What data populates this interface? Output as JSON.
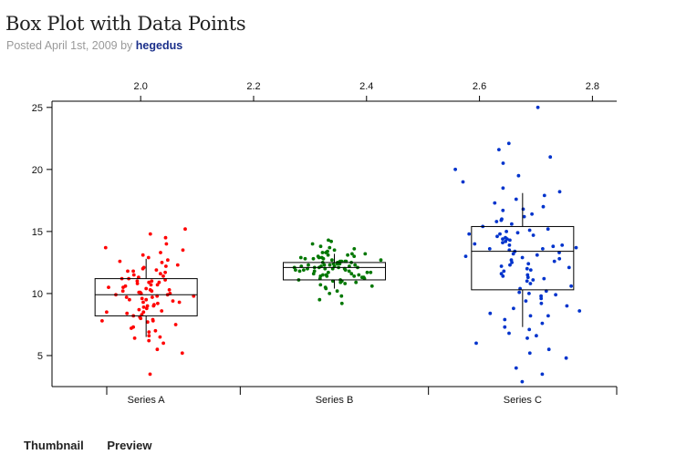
{
  "post": {
    "title": "Box Plot with Data Points",
    "posted_prefix": "Posted ",
    "date": "April 1st, 2009",
    "by": " by ",
    "author": "hegedus"
  },
  "footer": {
    "thumbnail": "Thumbnail",
    "preview": "Preview"
  },
  "chart_data": {
    "type": "box",
    "title": "",
    "xlabel": "",
    "ylabel": "",
    "ylim": [
      2.5,
      25.5
    ],
    "yticks": [
      5,
      10,
      15,
      20,
      25
    ],
    "top_axis": {
      "range": [
        1.843,
        2.843
      ],
      "ticks": [
        "2.0",
        "2.2",
        "2.4",
        "2.6",
        "2.8"
      ],
      "values": [
        2.0,
        2.2,
        2.4,
        2.6,
        2.8
      ]
    },
    "categories": [
      "Series A",
      "Series B",
      "Series C"
    ],
    "grid": false,
    "series": [
      {
        "name": "Series A",
        "color": "#ff0000",
        "q1": 8.2,
        "median": 9.9,
        "q3": 11.2,
        "whisker_low": 6.5,
        "whisker_high": 12.8,
        "jitter": 2.7,
        "points": [
          3.5,
          5.2,
          5.5,
          6.0,
          6.2,
          6.4,
          6.5,
          6.6,
          6.9,
          7.0,
          7.2,
          7.3,
          7.5,
          7.7,
          7.8,
          7.9,
          8.0,
          8.1,
          8.2,
          8.3,
          8.4,
          8.5,
          8.5,
          8.6,
          8.7,
          8.8,
          8.9,
          9.0,
          9.0,
          9.1,
          9.2,
          9.3,
          9.3,
          9.4,
          9.5,
          9.5,
          9.6,
          9.7,
          9.7,
          9.8,
          9.8,
          9.9,
          9.9,
          10.0,
          10.0,
          10.1,
          10.1,
          10.2,
          10.2,
          10.3,
          10.3,
          10.4,
          10.5,
          10.5,
          10.6,
          10.7,
          10.7,
          10.8,
          10.9,
          10.9,
          11.0,
          11.0,
          11.1,
          11.2,
          11.2,
          11.3,
          11.4,
          11.5,
          11.6,
          11.7,
          11.8,
          11.9,
          12.0,
          12.1,
          12.2,
          12.3,
          12.5,
          12.7,
          12.9,
          13.1,
          13.3,
          13.5,
          13.7,
          14.0,
          14.5,
          14.8,
          15.2,
          7.8,
          11.8,
          12.6
        ]
      },
      {
        "name": "Series B",
        "color": "#007700",
        "q1": 11.1,
        "median": 12.1,
        "q3": 12.5,
        "whisker_low": 10.4,
        "whisker_high": 13.2,
        "jitter": 2.2,
        "points": [
          9.2,
          9.5,
          9.8,
          10.0,
          10.2,
          10.4,
          10.5,
          10.6,
          10.7,
          10.8,
          10.9,
          11.0,
          11.0,
          11.1,
          11.1,
          11.2,
          11.2,
          11.3,
          11.3,
          11.4,
          11.4,
          11.5,
          11.5,
          11.6,
          11.6,
          11.7,
          11.7,
          11.8,
          11.8,
          11.8,
          11.9,
          11.9,
          11.9,
          12.0,
          12.0,
          12.0,
          12.1,
          12.1,
          12.1,
          12.1,
          12.2,
          12.2,
          12.2,
          12.2,
          12.3,
          12.3,
          12.3,
          12.4,
          12.4,
          12.4,
          12.5,
          12.5,
          12.5,
          12.6,
          12.6,
          12.6,
          12.7,
          12.7,
          12.8,
          12.8,
          12.9,
          12.9,
          13.0,
          13.0,
          13.1,
          13.1,
          13.2,
          13.3,
          13.4,
          13.5,
          13.6,
          13.7,
          13.8,
          14.0,
          14.2,
          14.3,
          11.0,
          12.0,
          12.9,
          11.7,
          12.3,
          12.6,
          13.2,
          11.4,
          10.9,
          12.8,
          13.3,
          11.5,
          12.1,
          12.4
        ]
      },
      {
        "name": "Series C",
        "color": "#0033cc",
        "q1": 10.3,
        "median": 13.4,
        "q3": 15.4,
        "whisker_low": 7.3,
        "whisker_high": 18.1,
        "jitter": 3.0,
        "points": [
          2.9,
          3.5,
          4.0,
          4.8,
          5.2,
          5.5,
          6.0,
          6.4,
          6.8,
          7.1,
          7.3,
          7.6,
          7.9,
          8.2,
          8.4,
          8.6,
          8.8,
          9.0,
          9.2,
          9.4,
          9.6,
          9.8,
          10.0,
          10.2,
          10.4,
          10.6,
          10.8,
          11.0,
          11.1,
          11.2,
          11.4,
          11.5,
          11.6,
          11.8,
          11.9,
          12.0,
          12.1,
          12.2,
          12.4,
          12.5,
          12.6,
          12.8,
          12.9,
          13.0,
          13.1,
          13.2,
          13.3,
          13.4,
          13.5,
          13.6,
          13.7,
          13.8,
          13.9,
          14.0,
          14.1,
          14.2,
          14.3,
          14.4,
          14.5,
          14.6,
          14.7,
          14.8,
          14.9,
          15.0,
          15.1,
          15.2,
          15.4,
          15.6,
          15.8,
          16.0,
          16.2,
          16.4,
          16.7,
          17.0,
          17.3,
          17.6,
          17.9,
          18.2,
          18.5,
          19.0,
          19.5,
          20.0,
          20.5,
          21.0,
          21.6,
          22.1,
          25.0,
          14.8,
          8.2,
          12.7,
          9.9,
          13.9,
          15.9,
          11.3,
          6.6,
          10.1,
          14.4,
          16.8,
          12.3,
          13.6
        ]
      }
    ]
  }
}
